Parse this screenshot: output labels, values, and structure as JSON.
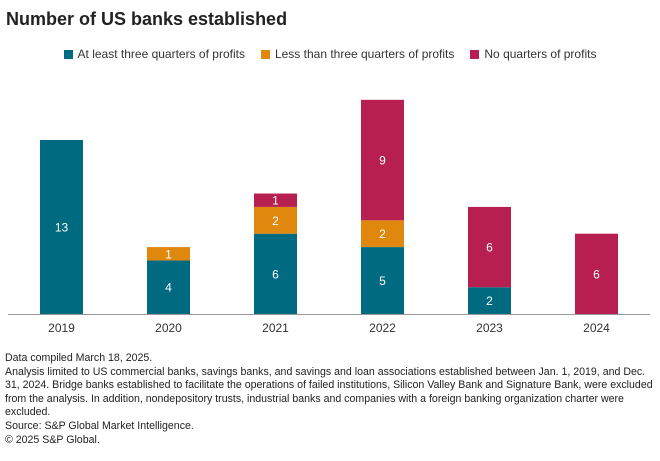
{
  "chart_data": {
    "type": "bar",
    "stacked": true,
    "title": "Number of US banks established",
    "categories": [
      "2019",
      "2020",
      "2021",
      "2022",
      "2023",
      "2024"
    ],
    "series": [
      {
        "name": "At least three quarters of profits",
        "color": "#006b80",
        "values": [
          13,
          4,
          6,
          5,
          2,
          0
        ]
      },
      {
        "name": "Less than three quarters of profits",
        "color": "#e0870e",
        "values": [
          0,
          1,
          2,
          2,
          0,
          0
        ]
      },
      {
        "name": "No quarters of profits",
        "color": "#b71f51",
        "values": [
          0,
          0,
          1,
          9,
          6,
          6
        ]
      }
    ],
    "xlabel": "",
    "ylabel": "",
    "ylim": [
      0,
      16
    ],
    "grid": false,
    "legend": "top"
  },
  "notes": [
    "Data compiled March 18, 2025.",
    "Analysis limited to US commercial banks, savings banks, and savings and loan associations established between Jan. 1, 2019, and Dec. 31, 2024. Bridge banks established to facilitate the operations of failed institutions, Silicon Valley Bank and Signature Bank, were excluded from the analysis. In addition, nondepository trusts, industrial banks and companies with a foreign banking organization charter were excluded.",
    "Source: S&P Global Market Intelligence.",
    "© 2025 S&P Global."
  ]
}
